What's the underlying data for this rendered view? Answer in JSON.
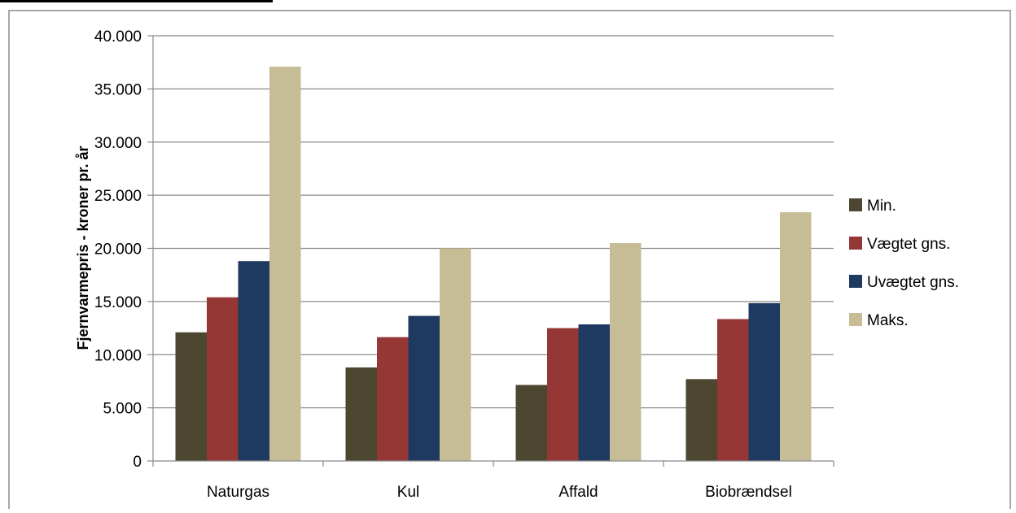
{
  "chart_data": {
    "type": "bar",
    "categories": [
      "Naturgas",
      "Kul",
      "Affald",
      "Biobrændsel"
    ],
    "series": [
      {
        "name": "Min.",
        "color": "#4d4630",
        "values": [
          12100,
          8800,
          7150,
          7700
        ]
      },
      {
        "name": "Vægtet gns.",
        "color": "#953735",
        "values": [
          15400,
          11650,
          12500,
          13350
        ]
      },
      {
        "name": "Uvægtet gns.",
        "color": "#1f3a60",
        "values": [
          18800,
          13650,
          12850,
          14850
        ]
      },
      {
        "name": "Maks.",
        "color": "#c6bd96",
        "values": [
          37100,
          20000,
          20500,
          23400
        ]
      }
    ],
    "ylabel": "Fjernvarmepris - kroner pr. år",
    "ylim": [
      0,
      40000
    ],
    "yticks": [
      0,
      5000,
      10000,
      15000,
      20000,
      25000,
      30000,
      35000,
      40000
    ],
    "ytick_labels": [
      "0",
      "5.000",
      "10.000",
      "15.000",
      "20.000",
      "25.000",
      "30.000",
      "35.000",
      "40.000"
    ],
    "grid": true,
    "legend_position": "right"
  }
}
